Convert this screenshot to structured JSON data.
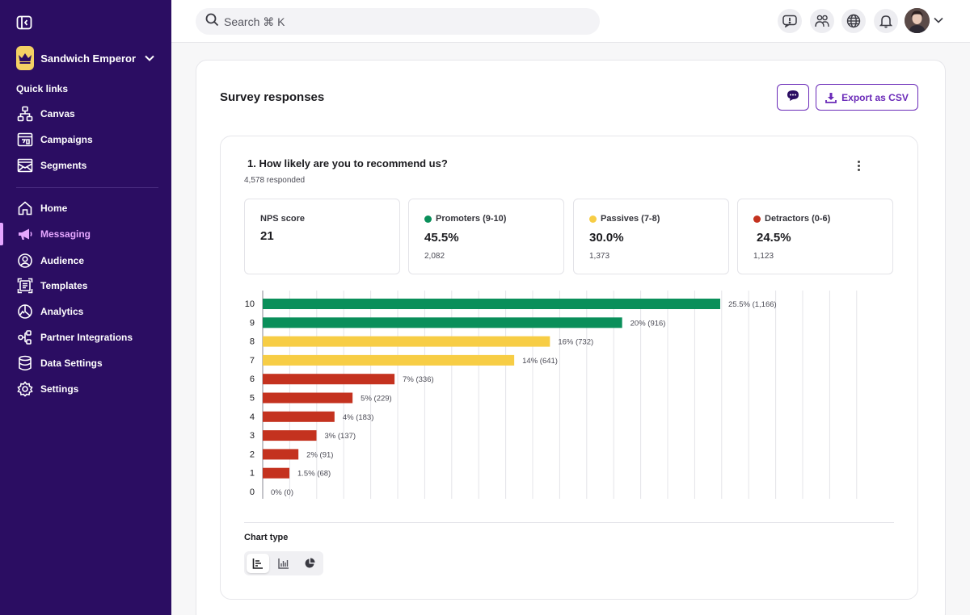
{
  "sidebar": {
    "workspace_name": "Sandwich Emperor",
    "section_label": "Quick links",
    "quick_links": [
      {
        "label": "Canvas",
        "icon": "canvas-icon"
      },
      {
        "label": "Campaigns",
        "icon": "campaigns-icon"
      },
      {
        "label": "Segments",
        "icon": "segments-icon"
      }
    ],
    "nav": [
      {
        "label": "Home",
        "icon": "home-icon"
      },
      {
        "label": "Messaging",
        "icon": "megaphone-icon",
        "active": true
      },
      {
        "label": "Audience",
        "icon": "audience-icon"
      },
      {
        "label": "Templates",
        "icon": "templates-icon"
      },
      {
        "label": "Analytics",
        "icon": "analytics-icon"
      },
      {
        "label": "Partner Integrations",
        "icon": "integrations-icon"
      },
      {
        "label": "Data Settings",
        "icon": "database-icon"
      },
      {
        "label": "Settings",
        "icon": "gear-icon"
      }
    ]
  },
  "topbar": {
    "search_placeholder": "Search ⌘ K",
    "icons": [
      "alert-icon",
      "people-icon",
      "globe-icon",
      "bell-icon"
    ]
  },
  "page": {
    "title": "Survey responses",
    "export_label": "Export as CSV"
  },
  "question": {
    "title": "1.  How likely are you to recommend us?",
    "responded": "4,578 responded"
  },
  "stats": [
    {
      "label": "NPS score",
      "value": "21",
      "count": "",
      "color": ""
    },
    {
      "label": "Promoters (9-10)",
      "value": "45.5%",
      "count": "2,082",
      "color": "#0a8f5a"
    },
    {
      "label": "Passives (7-8)",
      "value": "30.0%",
      "count": "1,373",
      "color": "#f7cd45"
    },
    {
      "label": "Detractors (0-6)",
      "value": "24.5%",
      "count": "1,123",
      "color": "#c4321f"
    }
  ],
  "colors": {
    "sidebar_bg": "#2b0d62",
    "accent": "#6a2ab8",
    "promoter": "#0a8f5a",
    "passive": "#f7cd45",
    "detractor": "#c4321f"
  },
  "chart_data": {
    "type": "bar",
    "orientation": "horizontal",
    "categories": [
      "10",
      "9",
      "8",
      "7",
      "6",
      "5",
      "4",
      "3",
      "2",
      "1",
      "0"
    ],
    "values": [
      1166,
      916,
      732,
      641,
      336,
      229,
      183,
      137,
      91,
      68,
      0
    ],
    "data_labels": [
      "25.5% (1,166)",
      "20% (916)",
      "16% (732)",
      "14% (641)",
      "7% (336)",
      "5% (229)",
      "4% (183)",
      "3% (137)",
      "2% (91)",
      "1.5% (68)",
      "0% (0)"
    ],
    "bar_colors": [
      "#0a8f5a",
      "#0a8f5a",
      "#f7cd45",
      "#f7cd45",
      "#c4321f",
      "#c4321f",
      "#c4321f",
      "#c4321f",
      "#c4321f",
      "#c4321f",
      "#c4321f"
    ],
    "xlim": [
      0,
      1500
    ],
    "grid": true
  },
  "chart_type": {
    "label": "Chart type",
    "options": [
      {
        "icon": "horizontal-bar-chart-icon",
        "selected": true
      },
      {
        "icon": "vertical-bar-chart-icon",
        "selected": false
      },
      {
        "icon": "pie-chart-icon",
        "selected": false
      }
    ]
  }
}
